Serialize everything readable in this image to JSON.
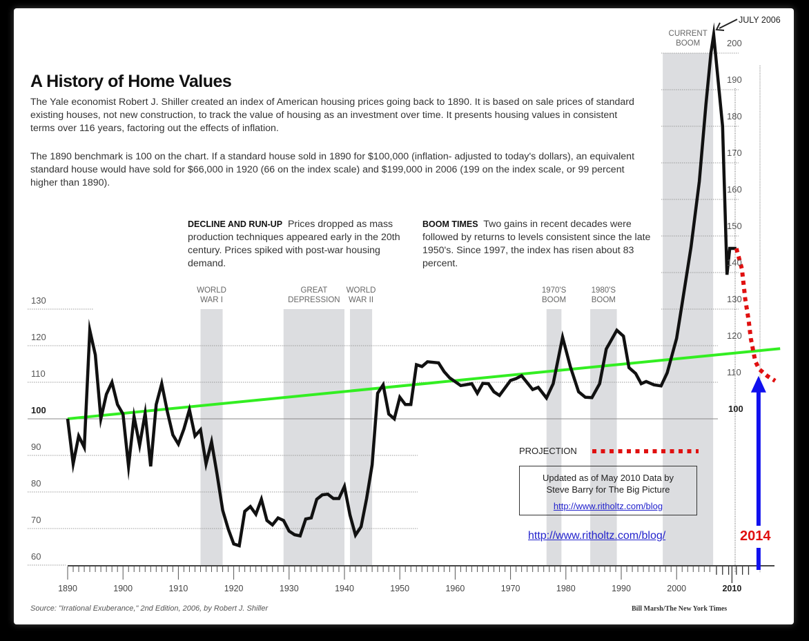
{
  "title": "A History of Home Values",
  "intro": [
    "The Yale economist Robert J. Shiller created an index of American housing prices going back to 1890. It is based on sale prices of standard existing houses, not new construction, to track the value of housing as an investment over time. It presents housing values in consistent terms over 116 years, factoring out the effects of inflation.",
    "The 1890 benchmark is 100 on the chart. If a standard house sold in 1890 for $100,000 (inflation- adjusted to today's dollars), an equivalent standard house would have sold for $66,000 in 1920 (66 on the index scale) and $199,000 in 2006 (199 on the index scale, or 99 percent higher than 1890)."
  ],
  "annotations": [
    {
      "heading": "DECLINE AND RUN-UP",
      "text": "Prices dropped as mass production techniques appeared early in the 20th century. Prices spiked with post-war housing demand."
    },
    {
      "heading": "BOOM TIMES",
      "text": "Two gains in recent decades were followed by returns to levels consistent since the late 1950's. Since 1997, the index has risen about 83 percent."
    }
  ],
  "peak_label": "JULY 2006",
  "projection_label": "PROJECTION",
  "note": {
    "line1": "Updated as of May 2010 Data by",
    "line2": "Steve Barry for The Big Picture",
    "link": "http://www.ritholtz.com/blog"
  },
  "link": "http://www.ritholtz.com/blog/",
  "arrow_year_label": "2014",
  "source": "Source: \"Irrational Exuberance,\" 2nd Edition, 2006, by Robert J. Shiller",
  "credit": "Bill Marsh/The New York Times",
  "colors": {
    "index_line": "#111111",
    "trend": "#33ee22",
    "projection": "#e01010",
    "arrow": "#1010ee",
    "band": "#dcdde0",
    "link": "#2222cc"
  },
  "chart_data": {
    "type": "line",
    "xlim": [
      1890,
      2018
    ],
    "ylim": [
      60,
      205
    ],
    "left_y_ticks": [
      "130",
      "120",
      "110",
      "100",
      "90",
      "80",
      "70",
      "60"
    ],
    "right_y_ticks": [
      "200",
      "190",
      "180",
      "170",
      "160",
      "150",
      "140",
      "130",
      "120",
      "110",
      "100"
    ],
    "x_ticks": [
      "1890",
      "1900",
      "1910",
      "1920",
      "1930",
      "1940",
      "1950",
      "1960",
      "1970",
      "1980",
      "1990",
      "2000",
      "2010"
    ],
    "grid": "dotted horizontal",
    "bands": [
      {
        "label": [
          "WORLD",
          "WAR I"
        ],
        "start": 1914,
        "end": 1918
      },
      {
        "label": [
          "GREAT",
          "DEPRESSION"
        ],
        "start": 1929,
        "end": 1940
      },
      {
        "label": [
          "WORLD",
          "WAR II"
        ],
        "start": 1941,
        "end": 1945
      },
      {
        "label": [
          "1970'S",
          "BOOM"
        ],
        "start": 1976.5,
        "end": 1979.2
      },
      {
        "label": [
          "1980'S",
          "BOOM"
        ],
        "start": 1984.4,
        "end": 1989.2
      },
      {
        "label": [
          "CURRENT",
          "BOOM"
        ],
        "start": 1997.5,
        "end": 2006.6
      }
    ],
    "series": [
      {
        "values": [
          [
            1890,
            100
          ],
          [
            1891,
            87.7
          ],
          [
            1892,
            95.3
          ],
          [
            1893,
            92.2
          ],
          [
            1894,
            124.2
          ],
          [
            1895,
            117.5
          ],
          [
            1896,
            100
          ],
          [
            1897,
            106.7
          ],
          [
            1898,
            110
          ],
          [
            1899,
            103.9
          ],
          [
            1900,
            101.3
          ],
          [
            1901,
            87
          ],
          [
            1902,
            100.6
          ],
          [
            1903,
            92.8
          ],
          [
            1904,
            101.5
          ],
          [
            1905,
            87
          ],
          [
            1906,
            103.9
          ],
          [
            1907,
            109.6
          ],
          [
            1908,
            102
          ],
          [
            1909,
            95.6
          ],
          [
            1910,
            93.1
          ],
          [
            1911,
            97.2
          ],
          [
            1912,
            102.5
          ],
          [
            1913,
            95.3
          ],
          [
            1914,
            97
          ],
          [
            1915,
            87.7
          ],
          [
            1916,
            93.7
          ],
          [
            1917,
            84.8
          ],
          [
            1918,
            75
          ],
          [
            1919,
            69.9
          ],
          [
            1920,
            65.8
          ],
          [
            1921,
            65.3
          ],
          [
            1922,
            74.7
          ],
          [
            1923,
            76
          ],
          [
            1924,
            73.9
          ],
          [
            1925,
            78
          ],
          [
            1926,
            72.2
          ],
          [
            1927,
            71
          ],
          [
            1928,
            72.9
          ],
          [
            1929,
            72.2
          ],
          [
            1930,
            69.3
          ],
          [
            1931,
            68.3
          ],
          [
            1932,
            68
          ],
          [
            1933,
            72.6
          ],
          [
            1934,
            72.9
          ],
          [
            1935,
            78
          ],
          [
            1936,
            79.2
          ],
          [
            1937,
            79.4
          ],
          [
            1938,
            78.2
          ],
          [
            1939,
            78.2
          ],
          [
            1940,
            81.5
          ],
          [
            1941,
            73.7
          ],
          [
            1942,
            68.2
          ],
          [
            1943,
            70.5
          ],
          [
            1944,
            78.2
          ],
          [
            1945,
            87.4
          ],
          [
            1946,
            107
          ],
          [
            1947,
            109.3
          ],
          [
            1948,
            101.3
          ],
          [
            1949,
            100
          ],
          [
            1950,
            105.9
          ],
          [
            1951,
            103.9
          ],
          [
            1952,
            103.9
          ],
          [
            1953,
            114.8
          ],
          [
            1954,
            114.3
          ],
          [
            1955,
            115.6
          ],
          [
            1957,
            115.3
          ],
          [
            1958,
            112.9
          ],
          [
            1959,
            111.2
          ],
          [
            1961,
            109.1
          ],
          [
            1963,
            109.6
          ],
          [
            1964,
            107
          ],
          [
            1965,
            109.7
          ],
          [
            1966,
            109.6
          ],
          [
            1967,
            107.4
          ],
          [
            1968,
            106.4
          ],
          [
            1970,
            110.5
          ],
          [
            1971,
            111
          ],
          [
            1972,
            111.8
          ],
          [
            1974,
            108
          ],
          [
            1975,
            108.6
          ],
          [
            1976.5,
            105.7
          ],
          [
            1977.7,
            109.6
          ],
          [
            1979.4,
            122.3
          ],
          [
            1980.8,
            114.3
          ],
          [
            1982.3,
            107.4
          ],
          [
            1983.5,
            105.9
          ],
          [
            1984.7,
            105.8
          ],
          [
            1986.1,
            109.6
          ],
          [
            1987.3,
            119.1
          ],
          [
            1989.2,
            124.2
          ],
          [
            1990.4,
            122.6
          ],
          [
            1991.4,
            114
          ],
          [
            1992.6,
            112.4
          ],
          [
            1993.6,
            109.6
          ],
          [
            1994.5,
            110.2
          ],
          [
            1995.9,
            109.3
          ],
          [
            1997.2,
            109
          ],
          [
            1998.3,
            112.6
          ],
          [
            2000,
            122
          ],
          [
            2001,
            131.5
          ],
          [
            2002.6,
            147
          ],
          [
            2004.1,
            164.9
          ],
          [
            2005.3,
            186
          ],
          [
            2006.2,
            200
          ],
          [
            2006.7,
            205
          ],
          [
            2008.3,
            180
          ],
          [
            2009.1,
            139.4
          ],
          [
            2009.6,
            146.6
          ],
          [
            2010.8,
            146.6
          ]
        ]
      },
      {
        "name": "PROJECTION",
        "style": "dotted",
        "values": [
          [
            2010.8,
            146.6
          ],
          [
            2011.8,
            141
          ],
          [
            2012.4,
            132.8
          ],
          [
            2013,
            127
          ],
          [
            2013.4,
            122
          ],
          [
            2014.2,
            115.8
          ],
          [
            2014.9,
            113.6
          ],
          [
            2016.4,
            111.7
          ],
          [
            2017.8,
            110.4
          ]
        ]
      },
      {
        "style": "trend",
        "values": [
          [
            1890,
            100
          ],
          [
            2018.7,
            119.2
          ]
        ]
      }
    ],
    "arrow": {
      "year": 2014.8,
      "from": 60,
      "to": 111
    }
  }
}
